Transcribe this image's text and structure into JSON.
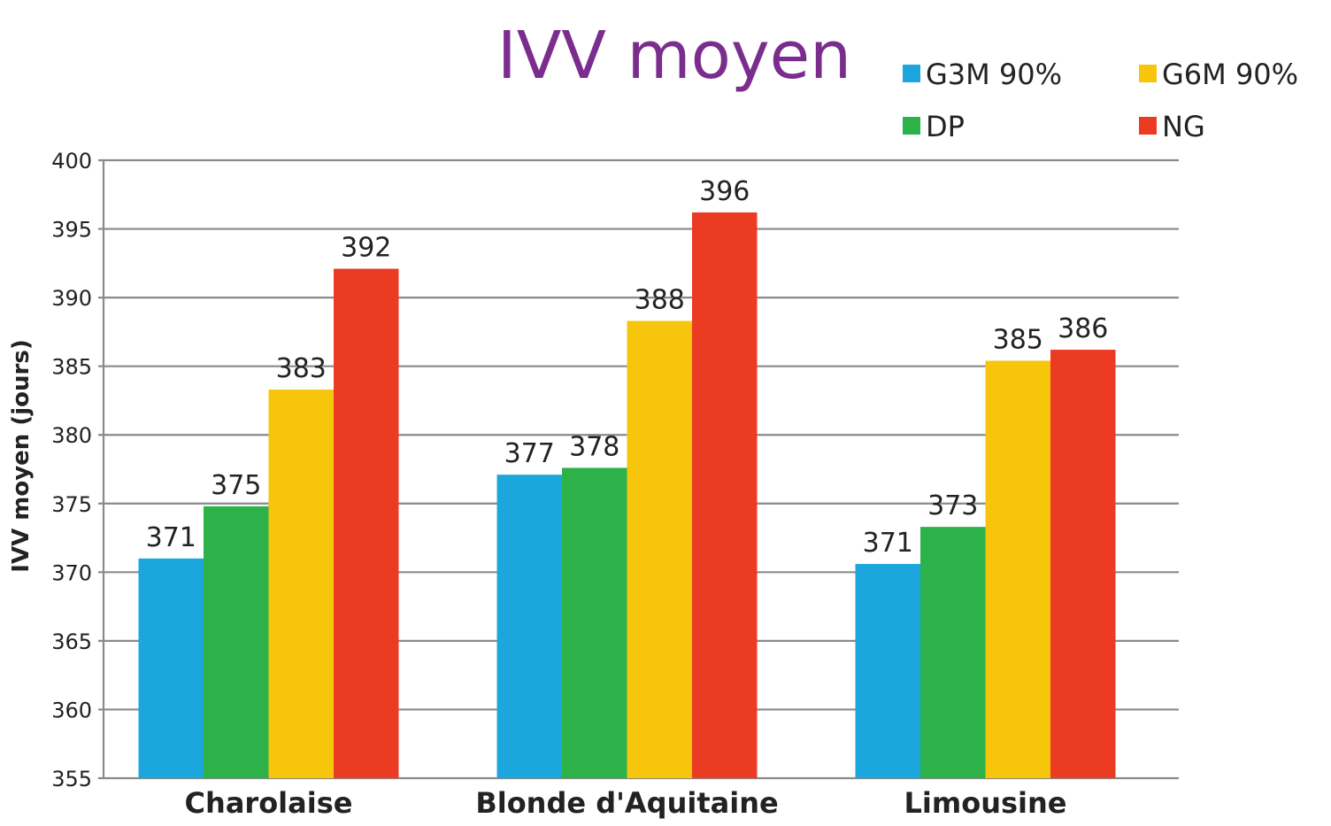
{
  "chart_data": {
    "type": "bar",
    "title": "IVV moyen",
    "xlabel": "",
    "ylabel": "IVV moyen (jours)",
    "ylim": [
      355,
      400
    ],
    "ytick_step": 5,
    "yticks": [
      "355",
      "360",
      "365",
      "370",
      "375",
      "380",
      "385",
      "390",
      "395",
      "400"
    ],
    "grid": true,
    "legend_position": "top-right",
    "categories": [
      "Charolaise",
      "Blonde d'Aquitaine",
      "Limousine"
    ],
    "series": [
      {
        "name": "G3M 90%",
        "color": "#1ba7de",
        "values": [
          371.0,
          377.1,
          370.6
        ],
        "labels": [
          "371",
          "377",
          "371"
        ]
      },
      {
        "name": "DP",
        "color": "#2db24a",
        "values": [
          374.8,
          377.6,
          373.3
        ],
        "labels": [
          "375",
          "378",
          "373"
        ]
      },
      {
        "name": "G6M 90%",
        "color": "#f7c50b",
        "values": [
          383.3,
          388.3,
          385.4
        ],
        "labels": [
          "383",
          "388",
          "385"
        ]
      },
      {
        "name": "NG",
        "color": "#ec3b23",
        "values": [
          392.1,
          396.2,
          386.2
        ],
        "labels": [
          "392",
          "396",
          "386"
        ]
      }
    ]
  }
}
